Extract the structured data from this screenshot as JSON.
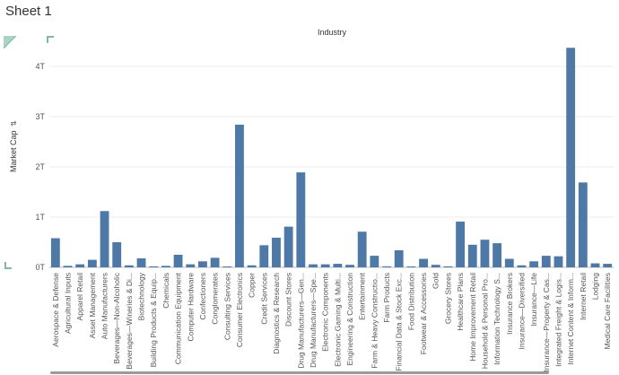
{
  "sheet": {
    "title": "Sheet 1"
  },
  "colors": {
    "bar": "#4e79a7",
    "grid": "#ececec",
    "axis": "#bdbdbd",
    "accent": "#7fb8a8"
  },
  "icons": {
    "corner": "triangle-flag-icon",
    "sort": "sort-descending-icon"
  },
  "chart_data": {
    "type": "bar",
    "title": "",
    "xlabel": "Industry",
    "ylabel": "Market Cap",
    "y_unit": "trillions",
    "ylim": [
      0,
      4.5
    ],
    "yticks": [
      0,
      1,
      2,
      3,
      4
    ],
    "ytick_labels": [
      "0T",
      "1T",
      "2T",
      "3T",
      "4T"
    ],
    "grid": true,
    "legend": "none",
    "categories": [
      "Aerospace & Defense",
      "Agricultural Inputs",
      "Apparel Retail",
      "Asset Management",
      "Auto Manufacturers",
      "Beverages—Non-Alcoholic",
      "Beverages—Wineries & Di...",
      "Biotechnology",
      "Building Products & Equip...",
      "Chemicals",
      "Communication Equipment",
      "Computer Hardware",
      "Confectioners",
      "Conglomerates",
      "Consulting Services",
      "Consumer Electronics",
      "Copper",
      "Credit Services",
      "Diagnostics & Research",
      "Discount Stores",
      "Drug Manufacturers—Gen...",
      "Drug Manufacturers—Spe...",
      "Electronic Components",
      "Electronic Gaming & Multi...",
      "Engineering & Construction",
      "Entertainment",
      "Farm & Heavy Constructio...",
      "Farm Products",
      "Financial Data & Stock Exc...",
      "Food Distribution",
      "Footwear & Accessories",
      "Gold",
      "Grocery Stores",
      "Healthcare Plans",
      "Home Improvement Retail",
      "Household & Personal Pro...",
      "Information Technology S...",
      "Insurance Brokers",
      "Insurance—Diversified",
      "Insurance—Life",
      "Insurance—Property & Cas...",
      "Integrated Freight & Logis...",
      "Internet Content & Inform...",
      "Internet Retail",
      "Lodging",
      "Medical Care Facilities"
    ],
    "values": [
      0.58,
      0.03,
      0.06,
      0.15,
      1.12,
      0.5,
      0.04,
      0.18,
      0.02,
      0.03,
      0.25,
      0.06,
      0.12,
      0.19,
      0.01,
      2.84,
      0.04,
      0.44,
      0.59,
      0.81,
      1.89,
      0.06,
      0.06,
      0.07,
      0.05,
      0.71,
      0.23,
      0.02,
      0.34,
      0.01,
      0.17,
      0.05,
      0.02,
      0.91,
      0.45,
      0.55,
      0.48,
      0.17,
      0.04,
      0.12,
      0.23,
      0.22,
      4.37,
      1.69,
      0.08,
      0.07
    ]
  }
}
